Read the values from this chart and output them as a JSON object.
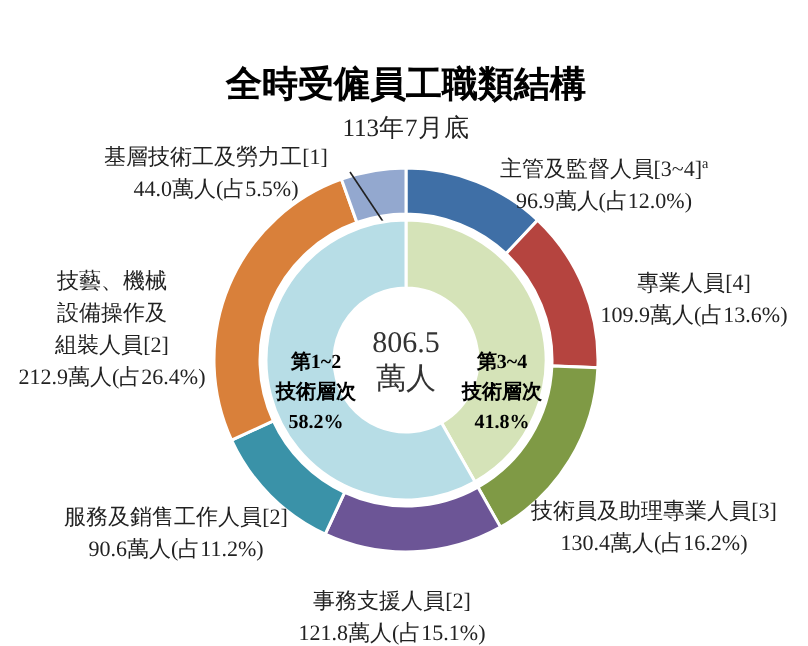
{
  "chart_data": [
    {
      "type": "donut",
      "title": "全時受僱員工職類結構",
      "subtitle": "113年7月底",
      "categories": [
        "主管及監督人員[3~4]$^{a}$",
        "專業人員[4]",
        "技術員及助理專業人員[3]",
        "事務支援人員[2]",
        "服務及銷售工作人員[2]",
        "技藝、機械設備操作及組裝人員[2]",
        "基層技術工及勞力工[1]"
      ],
      "values": [
        96.9,
        109.9,
        130.4,
        121.8,
        90.6,
        212.9,
        44.0
      ],
      "colors": [
        "#3f6fa6",
        "#b5443f",
        "#7f9a45",
        "#6c5596",
        "#3a92a8",
        "#d9803a",
        "#93a8cf"
      ],
      "value_labels": [
        "96.9萬人(占12.0%)",
        "109.9萬人(占13.6%)",
        "130.4萬人(占16.2%)",
        "121.8萬人(占15.1%)",
        "90.6萬人(占11.2%)",
        "212.9萬人(占26.4%)",
        "44.0萬人(占5.5%)"
      ]
    },
    {
      "type": "donut",
      "categories": [
        "第3~4技術層次",
        "第1~2技術層次"
      ],
      "values": [
        41.8,
        58.2
      ],
      "colors": [
        "#d5e3b8",
        "#b7dde6"
      ],
      "value_labels": [
        "41.8%",
        "58.2%"
      ],
      "annotations": [
        "806.5",
        "萬人"
      ]
    }
  ]
}
